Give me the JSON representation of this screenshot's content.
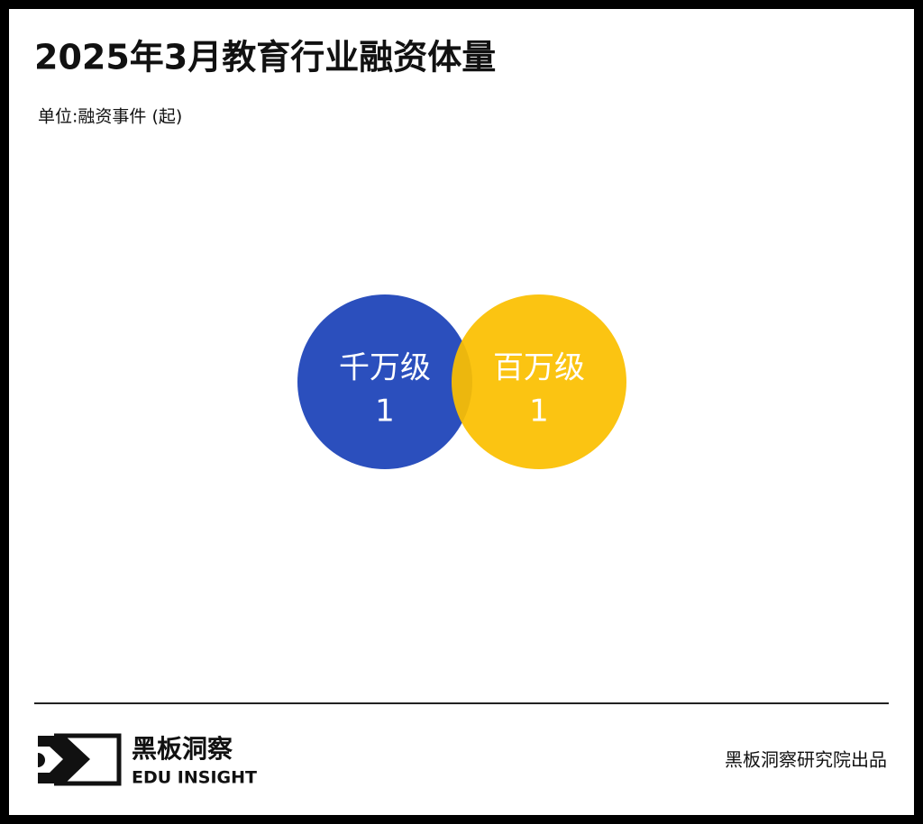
{
  "chart_data": {
    "type": "bubble",
    "title": "2025年3月教育行业融资体量",
    "subtitle": "单位:融资事件 (起)",
    "categories": [
      "千万级",
      "百万级"
    ],
    "values": [
      1,
      1
    ],
    "colors": [
      "#2b4fbd",
      "#fbbf00"
    ]
  },
  "footer": {
    "brand": "黑板洞察",
    "brand_en": "EDU INSIGHT",
    "credit": "黑板洞察研究院出品"
  }
}
